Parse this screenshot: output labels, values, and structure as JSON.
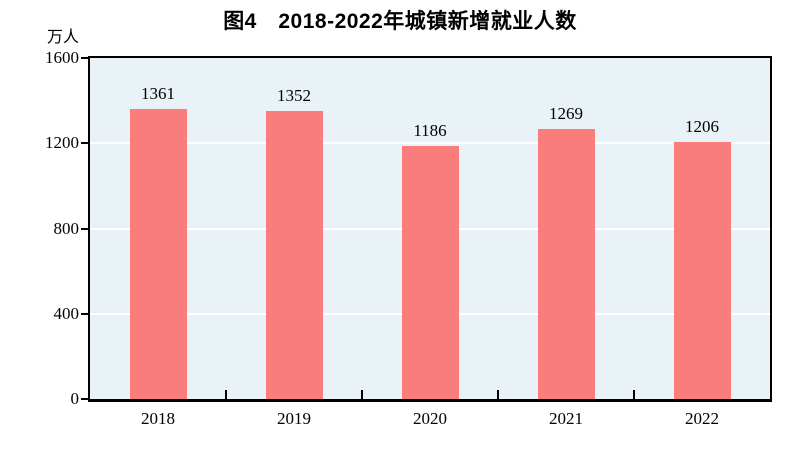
{
  "chart_data": {
    "type": "bar",
    "title": "图4　2018-2022年城镇新增就业人数",
    "unit_label": "万人",
    "categories": [
      "2018",
      "2019",
      "2020",
      "2021",
      "2022"
    ],
    "values": [
      1361,
      1352,
      1186,
      1269,
      1206
    ],
    "ylim": [
      0,
      1600
    ],
    "yticks": [
      0,
      400,
      800,
      1200,
      1600
    ],
    "grid": true,
    "legend": false,
    "bar_color": "#FA7D7D",
    "plot_bg_color": "#E9F2F6",
    "grid_color": "#FFFFFF",
    "axis_color": "#000000"
  }
}
